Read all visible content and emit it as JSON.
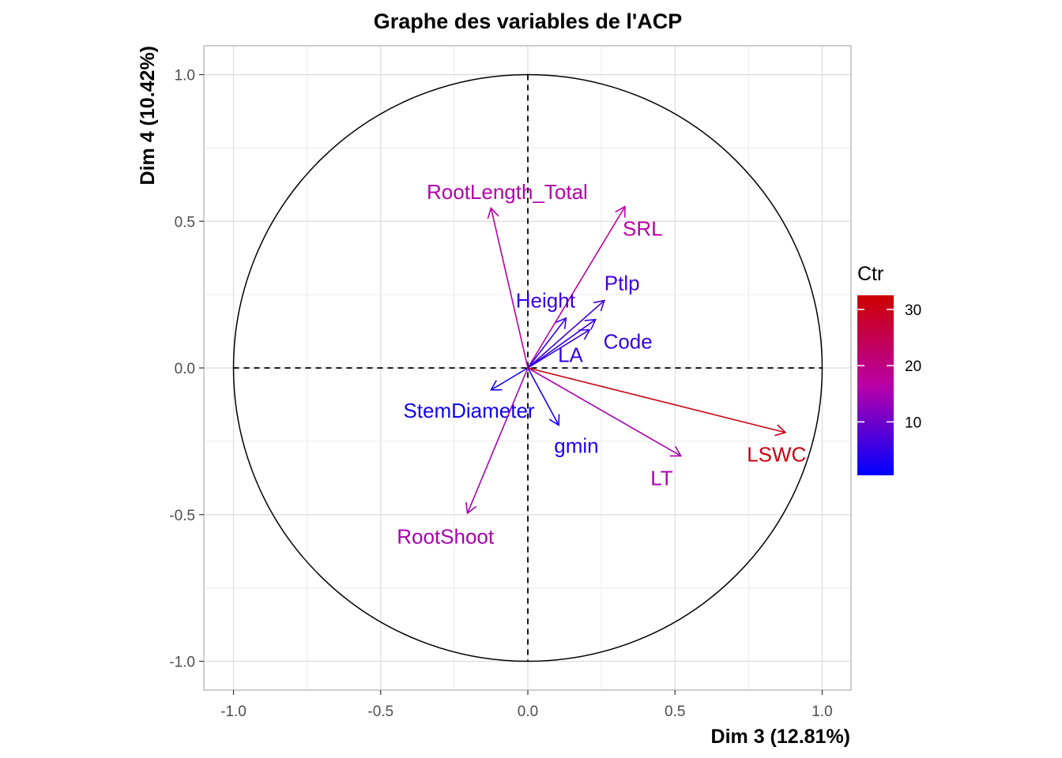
{
  "chart_data": {
    "type": "pca-variables",
    "title": "Graphe des variables de l'ACP",
    "xlabel": "Dim 3 (12.81%)",
    "ylabel": "Dim 4 (10.42%)",
    "xlim": [
      -1.1,
      1.1
    ],
    "ylim": [
      -1.1,
      1.1
    ],
    "x_ticks": [
      -1.0,
      -0.5,
      0.0,
      0.5,
      1.0
    ],
    "y_ticks": [
      -1.0,
      -0.5,
      0.0,
      0.5,
      1.0
    ],
    "x_tick_labels": [
      "-1.0",
      "-0.5",
      "0.0",
      "0.5",
      "1.0"
    ],
    "y_tick_labels": [
      "-1.0",
      "-0.5",
      "0.0",
      "0.5",
      "1.0"
    ],
    "grid": true,
    "correlation_circle": true,
    "variables": [
      {
        "name": "RootLength_Total",
        "x": -0.125,
        "y": 0.545,
        "ctr": 16,
        "label_x": -0.07,
        "label_y": 0.6
      },
      {
        "name": "SRL",
        "x": 0.33,
        "y": 0.55,
        "ctr": 17,
        "label_x": 0.39,
        "label_y": 0.475
      },
      {
        "name": "Ptlp",
        "x": 0.26,
        "y": 0.23,
        "ctr": 6,
        "label_x": 0.32,
        "label_y": 0.29
      },
      {
        "name": "Height",
        "x": 0.13,
        "y": 0.17,
        "ctr": 5,
        "label_x": 0.06,
        "label_y": 0.23
      },
      {
        "name": "Code",
        "x": 0.23,
        "y": 0.165,
        "ctr": 5,
        "label_x": 0.34,
        "label_y": 0.09
      },
      {
        "name": "LA",
        "x": 0.21,
        "y": 0.13,
        "ctr": 5,
        "label_x": 0.145,
        "label_y": 0.045
      },
      {
        "name": "StemDiameter",
        "x": -0.125,
        "y": -0.075,
        "ctr": 2,
        "label_x": -0.2,
        "label_y": -0.145
      },
      {
        "name": "gmin",
        "x": 0.105,
        "y": -0.195,
        "ctr": 3,
        "label_x": 0.165,
        "label_y": -0.265
      },
      {
        "name": "LT",
        "x": 0.52,
        "y": -0.3,
        "ctr": 15,
        "label_x": 0.455,
        "label_y": -0.375
      },
      {
        "name": "LSWC",
        "x": 0.875,
        "y": -0.22,
        "ctr": 31,
        "label_x": 0.845,
        "label_y": -0.295
      },
      {
        "name": "RootShoot",
        "x": -0.205,
        "y": -0.495,
        "ctr": 15,
        "label_x": -0.28,
        "label_y": -0.575
      }
    ],
    "legend": {
      "title": "Ctr",
      "placement": "right",
      "min": 0.5,
      "max": 32.5,
      "ticks": [
        10,
        20,
        30
      ],
      "tick_labels": [
        "10",
        "20",
        "30"
      ],
      "colors": [
        "#0000ff",
        "#ba00a8",
        "#cc0000"
      ]
    }
  }
}
